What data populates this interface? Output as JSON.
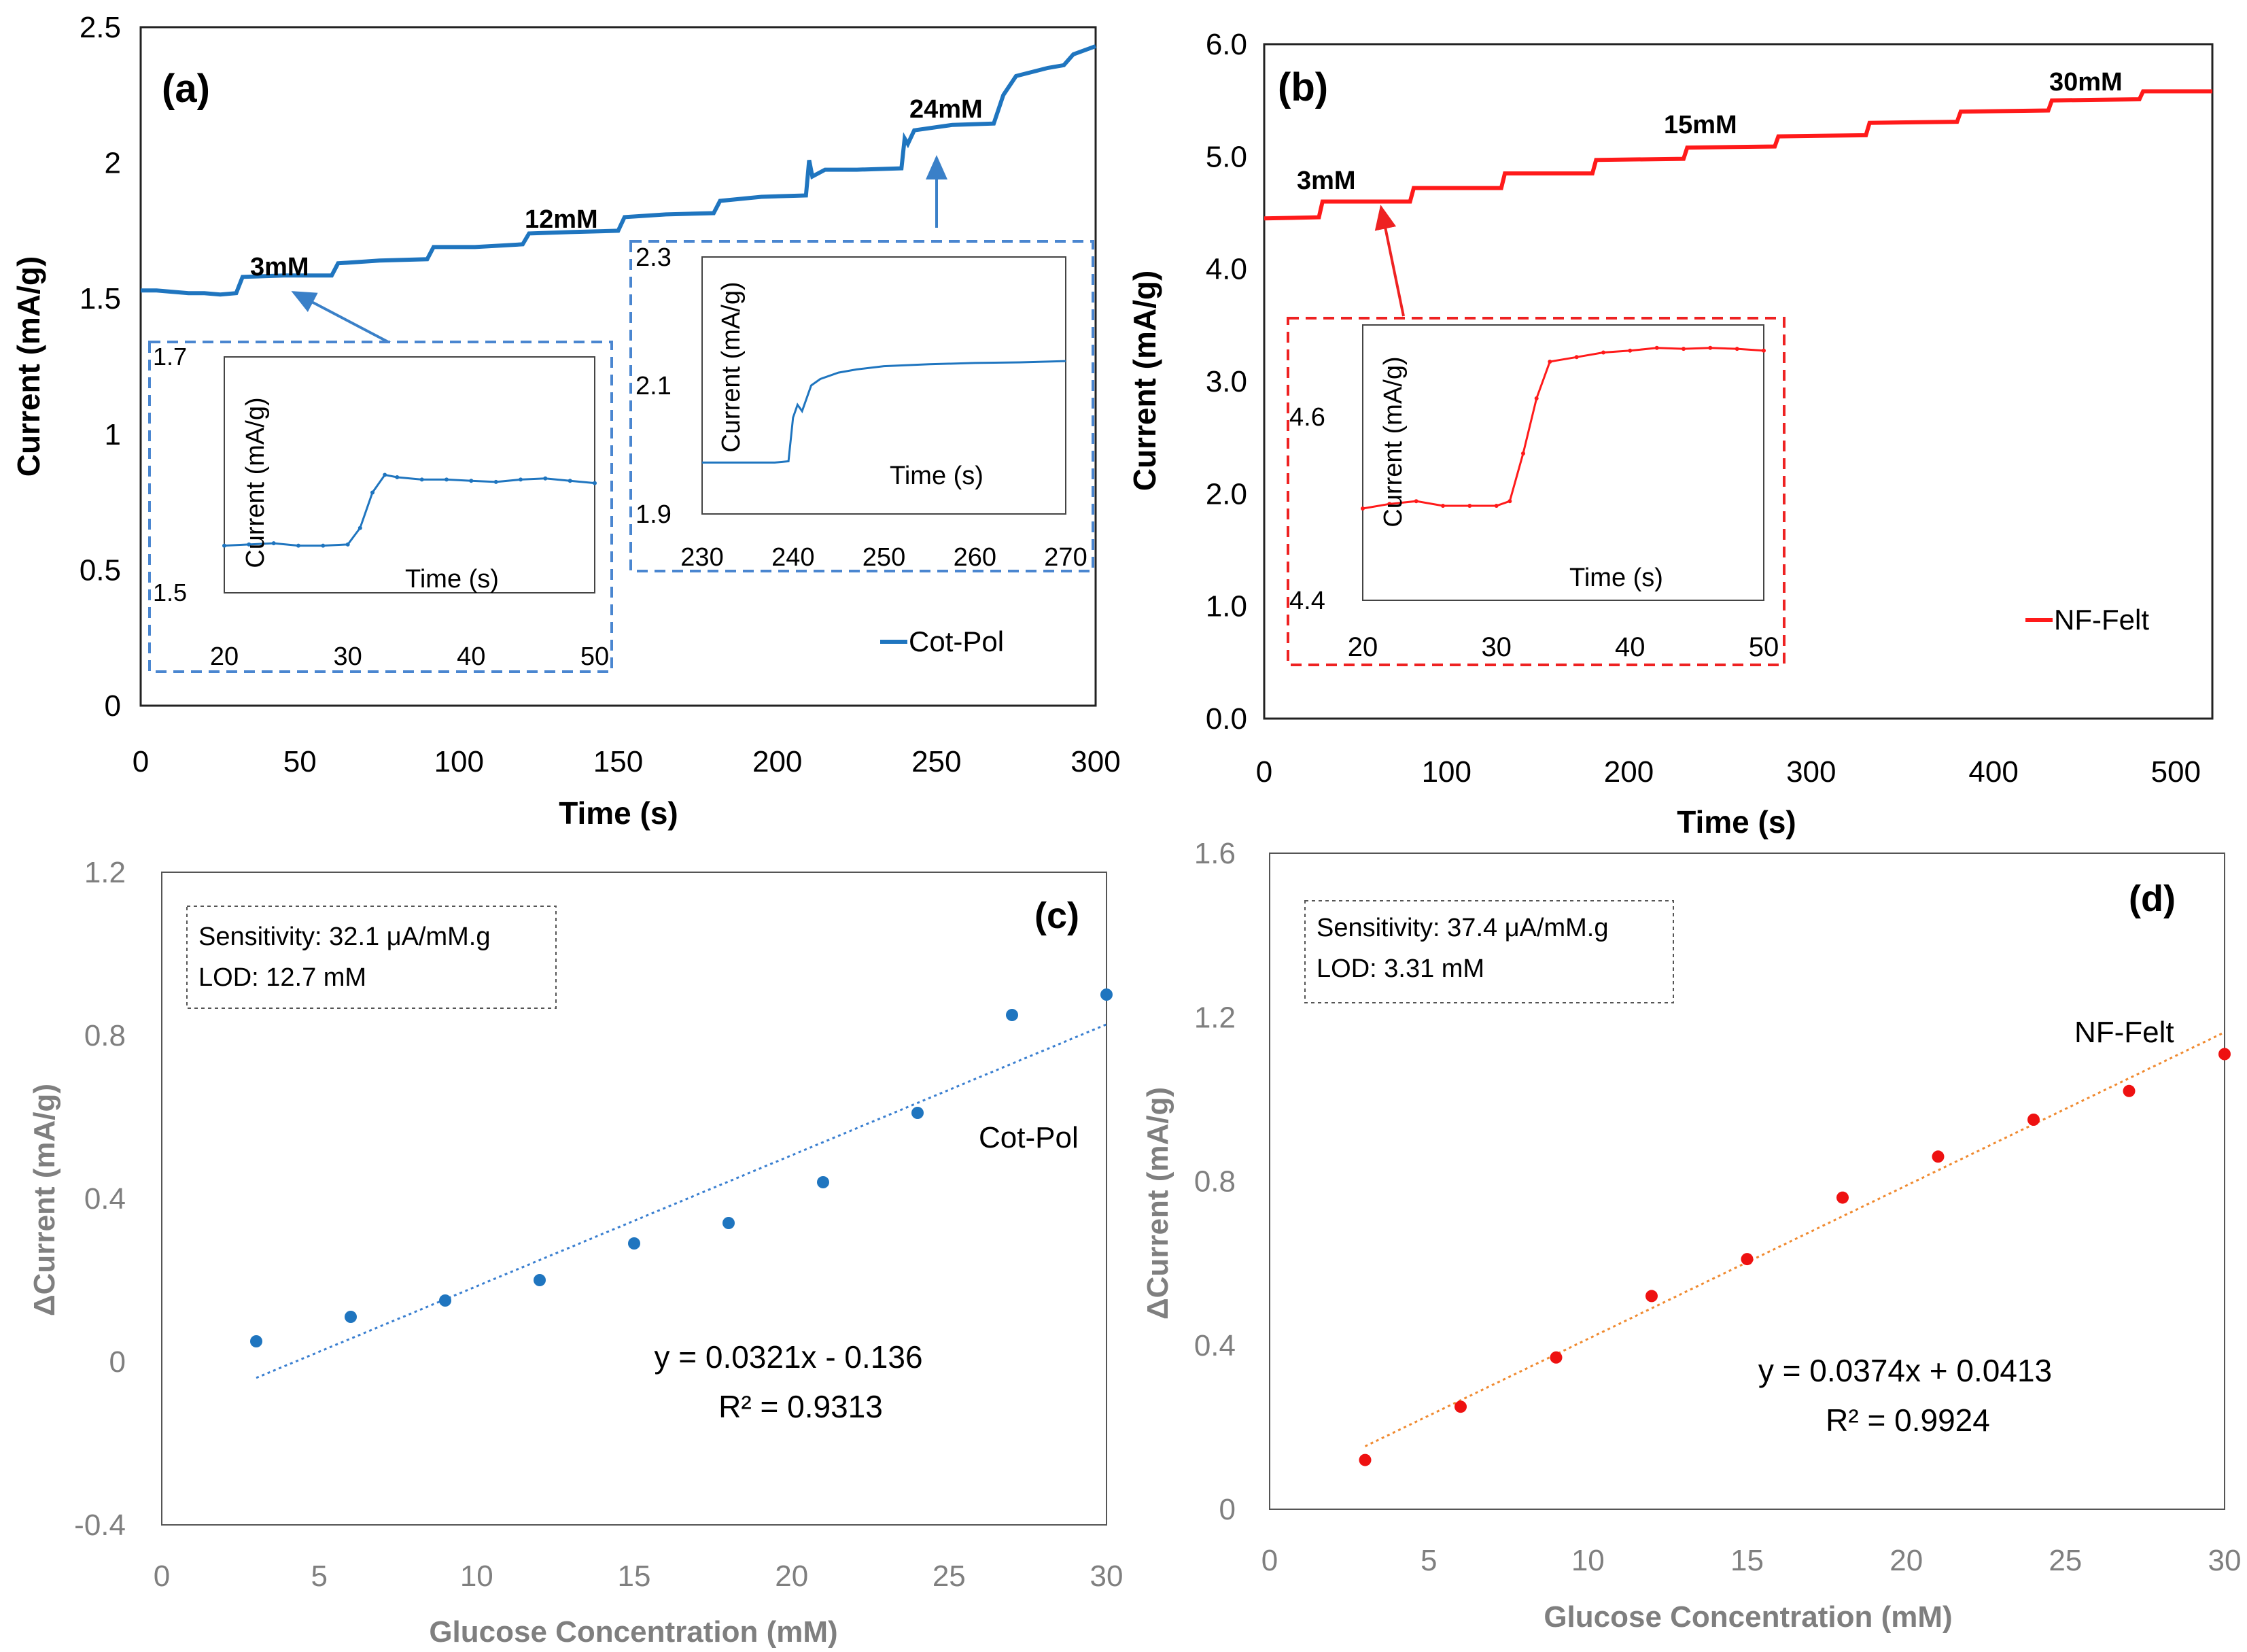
{
  "colors": {
    "blue": "#1f75bf",
    "red": "#ff1a1a",
    "red_point": "#ee1111",
    "orange_fit": "#f08a30",
    "blue_fit": "#3a7fd0",
    "dashed_blue": "#4a86d0",
    "dashed_red": "#ee2222",
    "arrow_blue": "#3a80c8",
    "arrow_red": "#ee2222",
    "gray_text": "#7f7f7f",
    "dark_text": "#000000"
  },
  "chart_data": [
    {
      "id": "a",
      "type": "line",
      "panel_label": "(a)",
      "xlabel": "Time (s)",
      "ylabel": "Current (mA/g)",
      "xlim": [
        0,
        300
      ],
      "ylim": [
        0,
        2.5
      ],
      "xticks": [
        "0",
        "50",
        "100",
        "150",
        "200",
        "250",
        "300"
      ],
      "yticks": [
        "0",
        "0.5",
        "1",
        "1.5",
        "2",
        "2.5"
      ],
      "legend": "Cot-Pol",
      "annotations": [
        "3mM",
        "12mM",
        "24mM"
      ],
      "series": [
        {
          "name": "Cot-Pol",
          "points": [
            [
              0,
              1.53
            ],
            [
              5,
              1.53
            ],
            [
              10,
              1.525
            ],
            [
              15,
              1.52
            ],
            [
              20,
              1.52
            ],
            [
              25,
              1.515
            ],
            [
              30,
              1.52
            ],
            [
              32,
              1.58
            ],
            [
              45,
              1.585
            ],
            [
              60,
              1.585
            ],
            [
              62,
              1.63
            ],
            [
              75,
              1.64
            ],
            [
              90,
              1.645
            ],
            [
              92,
              1.69
            ],
            [
              105,
              1.69
            ],
            [
              120,
              1.7
            ],
            [
              122,
              1.74
            ],
            [
              135,
              1.745
            ],
            [
              150,
              1.75
            ],
            [
              152,
              1.8
            ],
            [
              165,
              1.81
            ],
            [
              180,
              1.815
            ],
            [
              182,
              1.86
            ],
            [
              195,
              1.875
            ],
            [
              209,
              1.88
            ],
            [
              210,
              2.01
            ],
            [
              211,
              1.95
            ],
            [
              215,
              1.975
            ],
            [
              225,
              1.975
            ],
            [
              239,
              1.98
            ],
            [
              240,
              2.09
            ],
            [
              241,
              2.07
            ],
            [
              243,
              2.12
            ],
            [
              255,
              2.14
            ],
            [
              268,
              2.145
            ],
            [
              271,
              2.25
            ],
            [
              275,
              2.32
            ],
            [
              285,
              2.35
            ],
            [
              290,
              2.36
            ],
            [
              293,
              2.4
            ],
            [
              300,
              2.43
            ]
          ]
        }
      ],
      "inset_left": {
        "xlabel": "Time (s)",
        "ylabel": "Current (mA/g)",
        "xlim": [
          20,
          50
        ],
        "ylim": [
          1.5,
          1.7
        ],
        "xticks": [
          "20",
          "30",
          "40",
          "50"
        ],
        "yticks": [
          "1.5",
          "1.7"
        ],
        "points": [
          [
            20,
            1.54
          ],
          [
            22,
            1.541
          ],
          [
            24,
            1.542
          ],
          [
            26,
            1.54
          ],
          [
            28,
            1.54
          ],
          [
            30,
            1.541
          ],
          [
            31,
            1.555
          ],
          [
            32,
            1.585
          ],
          [
            33,
            1.6
          ],
          [
            34,
            1.598
          ],
          [
            36,
            1.596
          ],
          [
            38,
            1.596
          ],
          [
            40,
            1.595
          ],
          [
            42,
            1.594
          ],
          [
            44,
            1.596
          ],
          [
            46,
            1.597
          ],
          [
            48,
            1.595
          ],
          [
            50,
            1.593
          ]
        ]
      },
      "inset_right": {
        "xlabel": "Time (s)",
        "ylabel": "Current (mA/g)",
        "xlim": [
          230,
          270
        ],
        "ylim": [
          1.9,
          2.3
        ],
        "xticks": [
          "230",
          "240",
          "250",
          "260",
          "270"
        ],
        "yticks": [
          "1.9",
          "2.1",
          "2.3"
        ],
        "points": [
          [
            230,
            1.98
          ],
          [
            235,
            1.98
          ],
          [
            238,
            1.98
          ],
          [
            239.5,
            1.982
          ],
          [
            240,
            2.05
          ],
          [
            240.5,
            2.07
          ],
          [
            241,
            2.06
          ],
          [
            242,
            2.1
          ],
          [
            243,
            2.11
          ],
          [
            245,
            2.12
          ],
          [
            247,
            2.125
          ],
          [
            250,
            2.13
          ],
          [
            255,
            2.133
          ],
          [
            260,
            2.135
          ],
          [
            265,
            2.136
          ],
          [
            270,
            2.138
          ]
        ]
      }
    },
    {
      "id": "b",
      "type": "line",
      "panel_label": "(b)",
      "xlabel": "Time (s)",
      "ylabel": "Current (mA/g)",
      "xlim": [
        0,
        520
      ],
      "ylim": [
        0,
        6
      ],
      "xticks": [
        "0",
        "100",
        "200",
        "300",
        "400",
        "500"
      ],
      "yticks": [
        "0.0",
        "1.0",
        "2.0",
        "3.0",
        "4.0",
        "5.0",
        "6.0"
      ],
      "legend": "NF-Felt",
      "annotations": [
        "3mM",
        "15mM",
        "30mM"
      ],
      "series": [
        {
          "name": "NF-Felt",
          "points": [
            [
              0,
              4.45
            ],
            [
              30,
              4.46
            ],
            [
              32,
              4.6
            ],
            [
              80,
              4.6
            ],
            [
              82,
              4.72
            ],
            [
              130,
              4.72
            ],
            [
              132,
              4.85
            ],
            [
              180,
              4.85
            ],
            [
              182,
              4.97
            ],
            [
              230,
              4.98
            ],
            [
              232,
              5.08
            ],
            [
              280,
              5.09
            ],
            [
              282,
              5.18
            ],
            [
              330,
              5.19
            ],
            [
              332,
              5.3
            ],
            [
              380,
              5.31
            ],
            [
              382,
              5.4
            ],
            [
              430,
              5.41
            ],
            [
              432,
              5.5
            ],
            [
              480,
              5.51
            ],
            [
              482,
              5.58
            ],
            [
              520,
              5.58
            ]
          ]
        }
      ],
      "inset": {
        "xlabel": "Time (s)",
        "ylabel": "Current (mA/g)",
        "xlim": [
          20,
          50
        ],
        "ylim": [
          4.4,
          4.7
        ],
        "xticks": [
          "20",
          "30",
          "40",
          "50"
        ],
        "yticks": [
          "4.4",
          "4.6"
        ],
        "points": [
          [
            20,
            4.5
          ],
          [
            22,
            4.505
          ],
          [
            24,
            4.508
          ],
          [
            26,
            4.503
          ],
          [
            28,
            4.503
          ],
          [
            30,
            4.503
          ],
          [
            31,
            4.508
          ],
          [
            32,
            4.56
          ],
          [
            33,
            4.62
          ],
          [
            34,
            4.66
          ],
          [
            36,
            4.665
          ],
          [
            38,
            4.67
          ],
          [
            40,
            4.672
          ],
          [
            42,
            4.675
          ],
          [
            44,
            4.674
          ],
          [
            46,
            4.675
          ],
          [
            48,
            4.674
          ],
          [
            50,
            4.672
          ]
        ]
      }
    },
    {
      "id": "c",
      "type": "scatter",
      "panel_label": "(c)",
      "xlabel": "Glucose Concentration (mM)",
      "ylabel": "ΔCurrent (mA/g)",
      "xlim": [
        0,
        30
      ],
      "ylim": [
        -0.4,
        1.2
      ],
      "xticks": [
        "0",
        "5",
        "10",
        "15",
        "20",
        "25",
        "30"
      ],
      "yticks": [
        "-0.4",
        "0",
        "0.4",
        "0.8",
        "1.2"
      ],
      "series_label": "Cot-Pol",
      "info": [
        "Sensitivity: 32.1 μA/mM.g",
        "LOD: 12.7 mM"
      ],
      "equation": "y = 0.0321x - 0.136",
      "r2": "R² = 0.9313",
      "fit": {
        "slope": 0.0321,
        "intercept": -0.136
      },
      "x": [
        3,
        6,
        9,
        12,
        15,
        18,
        21,
        24,
        27,
        30
      ],
      "y": [
        0.05,
        0.11,
        0.15,
        0.2,
        0.29,
        0.34,
        0.44,
        0.61,
        0.85,
        0.9
      ]
    },
    {
      "id": "d",
      "type": "scatter",
      "panel_label": "(d)",
      "xlabel": "Glucose Concentration (mM)",
      "ylabel": "ΔCurrent (mA/g)",
      "xlim": [
        0,
        30
      ],
      "ylim": [
        0,
        1.6
      ],
      "xticks": [
        "0",
        "5",
        "10",
        "15",
        "20",
        "25",
        "30"
      ],
      "yticks": [
        "0",
        "0.4",
        "0.8",
        "1.2",
        "1.6"
      ],
      "series_label": "NF-Felt",
      "info": [
        "Sensitivity: 37.4 μA/mM.g",
        "LOD: 3.31 mM"
      ],
      "equation": "y = 0.0374x + 0.0413",
      "r2": "R² = 0.9924",
      "fit": {
        "slope": 0.0374,
        "intercept": 0.0413
      },
      "x": [
        3,
        6,
        9,
        12,
        15,
        18,
        21,
        24,
        27,
        30
      ],
      "y": [
        0.12,
        0.25,
        0.37,
        0.52,
        0.61,
        0.76,
        0.86,
        0.95,
        1.02,
        1.11
      ]
    }
  ]
}
